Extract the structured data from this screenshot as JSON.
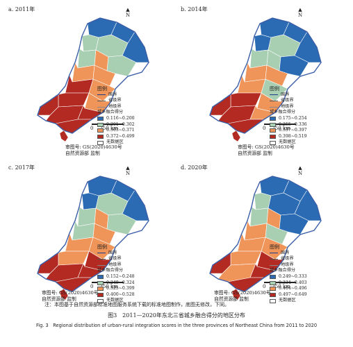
{
  "panels": [
    {
      "label": "a. 2011年",
      "legend_title": "图例",
      "national": "国界",
      "provincial": "省级界",
      "prefecture": "地级界",
      "score_title": "城乡融合得分",
      "classes": [
        "0.116~0.200",
        "0.201~0.302",
        "0.303~0.371",
        "0.372~0.499"
      ],
      "nodata": "无数据区",
      "approval_1": "审图号: GS(2020)4630号",
      "approval_2": "自然资源部 监制",
      "scale_text": "250 km",
      "scale_zero": "0",
      "north": "N"
    },
    {
      "label": "b. 2014年",
      "legend_title": "图例",
      "national": "国界",
      "provincial": "省级界",
      "prefecture": "地级界",
      "score_title": "城乡融合得分",
      "classes": [
        "0.175~0.254",
        "0.255~0.336",
        "0.337~0.397",
        "0.398~0.519"
      ],
      "nodata": "无数据区",
      "approval_1": "审图号: GS(2020)4630号",
      "approval_2": "自然资源部 监制",
      "scale_text": "250 km",
      "scale_zero": "0",
      "north": "N"
    },
    {
      "label": "c. 2017年",
      "legend_title": "图例",
      "national": "国界",
      "provincial": "省级界",
      "prefecture": "地级界",
      "score_title": "城乡融合得分",
      "classes": [
        "0.152~0.248",
        "0.249~0.324",
        "0.325~0.399",
        "0.400~0.528"
      ],
      "nodata": "无数据区",
      "approval_1": "审图号: GS(2020)4630号",
      "approval_2": "自然资源部 监制",
      "scale_text": "250 km",
      "scale_zero": "0",
      "north": "N"
    },
    {
      "label": "d. 2020年",
      "legend_title": "图例",
      "national": "国界",
      "provincial": "省级界",
      "prefecture": "地级界",
      "score_title": "城乡融合得分",
      "classes": [
        "0.249~0.333",
        "0.334~0.403",
        "0.404~0.496",
        "0.497~0.649"
      ],
      "nodata": "无数据区",
      "approval_1": "审图号: GS(2020)4630号",
      "approval_2": "自然资源部 监制",
      "scale_text": "250 km",
      "scale_zero": "0",
      "north": "N"
    }
  ],
  "colors": {
    "class1": "#2b6bb3",
    "class2": "#a9cfb3",
    "class3": "#f0955a",
    "class4": "#b22a22",
    "nodata": "#ffffff",
    "border": "#3a5ea8"
  },
  "note": "注：本图基于自然资源部标准地图服务系统下载的标准地图制作，底图无修改，下同。",
  "caption_zh": "图3　2011—2020年东北三省城乡融合得分的地区分布",
  "caption_en": "Fig. 3　Regional distribution of urban-rural integration scores in the three provinces of Northeast China from 2011 to 2020"
}
